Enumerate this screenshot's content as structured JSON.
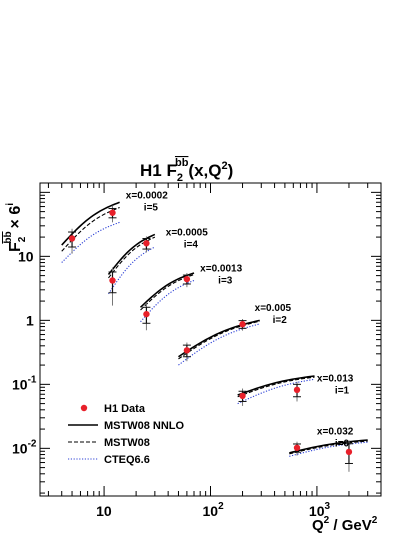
{
  "chart_data": {
    "type": "scatter",
    "title": "H1 F",
    "title_sub": "2",
    "title_sup": "bb",
    "title_suffix": "(x,Q",
    "title_suffix_sup": "2",
    "title_end": ")",
    "ylabel_main": "F",
    "ylabel_sub": "2",
    "ylabel_sup": "bb",
    "ylabel_times": "× 6",
    "ylabel_times_sup": "i",
    "xlabel_main": "Q",
    "xlabel_sup": "2",
    "xlabel_rest": " / GeV",
    "xlabel_sup2": "2",
    "x_scale": "log",
    "y_scale": "log",
    "xlim": [
      2.5,
      4000
    ],
    "ylim": [
      0.0018,
      140
    ],
    "x_ticks": [
      {
        "value": 10,
        "base": "10",
        "exp": ""
      },
      {
        "value": 100,
        "base": "10",
        "exp": "2"
      },
      {
        "value": 1000,
        "base": "10",
        "exp": "3"
      }
    ],
    "y_ticks": [
      {
        "value": 0.01,
        "base": "10",
        "exp": "-2"
      },
      {
        "value": 0.1,
        "base": "10",
        "exp": "-1"
      },
      {
        "value": 1,
        "base": "1",
        "exp": ""
      },
      {
        "value": 10,
        "base": "10",
        "exp": ""
      }
    ],
    "bins": [
      {
        "x_label": "x=0.0002",
        "i_label": "i=5",
        "label_q2": 16,
        "label_y": 80,
        "points": [
          {
            "q2": 5,
            "y": 19,
            "err_stat": 5,
            "err_tot": 8
          },
          {
            "q2": 12,
            "y": 48,
            "err_stat": 8,
            "err_tot": 14
          }
        ],
        "curves": {
          "nnlo": [
            [
              4,
              15
            ],
            [
              14,
              70
            ]
          ],
          "mstw": [
            [
              4,
              12
            ],
            [
              14,
              58
            ]
          ],
          "cteq": [
            [
              4,
              8
            ],
            [
              14,
              34
            ]
          ]
        }
      },
      {
        "x_label": "x=0.0005",
        "i_label": "i=4",
        "label_q2": 38,
        "label_y": 21,
        "points": [
          {
            "q2": 12,
            "y": 4.2,
            "err_stat": 1.5,
            "err_tot": 2.5
          },
          {
            "q2": 25,
            "y": 16,
            "err_stat": 3,
            "err_tot": 4.5
          }
        ],
        "curves": {
          "nnlo": [
            [
              11,
              5.2
            ],
            [
              30,
              22
            ]
          ],
          "mstw": [
            [
              11,
              4.6
            ],
            [
              30,
              20
            ]
          ],
          "cteq": [
            [
              11,
              2.6
            ],
            [
              30,
              14
            ]
          ]
        }
      },
      {
        "x_label": "x=0.0013",
        "i_label": "i=3",
        "label_q2": 80,
        "label_y": 5.8,
        "points": [
          {
            "q2": 25,
            "y": 1.25,
            "err_stat": 0.35,
            "err_tot": 0.55
          },
          {
            "q2": 60,
            "y": 4.4,
            "err_stat": 0.7,
            "err_tot": 1.1
          }
        ],
        "curves": {
          "nnlo": [
            [
              22,
              1.6
            ],
            [
              70,
              5.5
            ]
          ],
          "mstw": [
            [
              22,
              1.45
            ],
            [
              70,
              5.2
            ]
          ],
          "cteq": [
            [
              22,
              0.95
            ],
            [
              70,
              4.2
            ]
          ]
        }
      },
      {
        "x_label": "x=0.005",
        "i_label": "i=2",
        "label_q2": 260,
        "label_y": 1.4,
        "points": [
          {
            "q2": 60,
            "y": 0.34,
            "err_stat": 0.07,
            "err_tot": 0.11
          },
          {
            "q2": 200,
            "y": 0.87,
            "err_stat": 0.12,
            "err_tot": 0.18
          }
        ],
        "curves": {
          "nnlo": [
            [
              50,
              0.27
            ],
            [
              290,
              1.0
            ]
          ],
          "mstw": [
            [
              50,
              0.25
            ],
            [
              290,
              0.97
            ]
          ],
          "cteq": [
            [
              50,
              0.2
            ],
            [
              290,
              0.88
            ]
          ]
        }
      },
      {
        "x_label": "x=0.013",
        "i_label": "i=1",
        "label_q2": 1000,
        "label_y": 0.11,
        "points": [
          {
            "q2": 200,
            "y": 0.066,
            "err_stat": 0.012,
            "err_tot": 0.02
          },
          {
            "q2": 650,
            "y": 0.082,
            "err_stat": 0.018,
            "err_tot": 0.028
          }
        ],
        "curves": {
          "nnlo": [
            [
              180,
              0.068
            ],
            [
              950,
              0.135
            ]
          ],
          "mstw": [
            [
              180,
              0.064
            ],
            [
              950,
              0.13
            ]
          ],
          "cteq": [
            [
              180,
              0.05
            ],
            [
              950,
              0.12
            ]
          ]
        }
      },
      {
        "x_label": "x=0.032",
        "i_label": "i=0",
        "label_q2": 1000,
        "label_y": 0.0165,
        "points": [
          {
            "q2": 650,
            "y": 0.0102,
            "err_stat": 0.0015,
            "err_tot": 0.0025
          },
          {
            "q2": 2000,
            "y": 0.0088,
            "err_stat": 0.003,
            "err_tot": 0.0045
          }
        ],
        "curves": {
          "nnlo": [
            [
              550,
              0.0085
            ],
            [
              3000,
              0.0135
            ]
          ],
          "mstw": [
            [
              550,
              0.0082
            ],
            [
              3000,
              0.013
            ]
          ],
          "cteq": [
            [
              550,
              0.0075
            ],
            [
              3000,
              0.0125
            ]
          ]
        }
      }
    ],
    "legend": {
      "placement": "bottom-left",
      "items": [
        {
          "key": "data",
          "label": "H1 Data",
          "color": "#e8202a"
        },
        {
          "key": "nnlo",
          "label": "MSTW08 NNLO",
          "color": "#000000"
        },
        {
          "key": "mstw",
          "label": "MSTW08",
          "color": "#000000"
        },
        {
          "key": "cteq",
          "label": "CTEQ6.6",
          "color": "#2b3fd6"
        }
      ]
    }
  }
}
